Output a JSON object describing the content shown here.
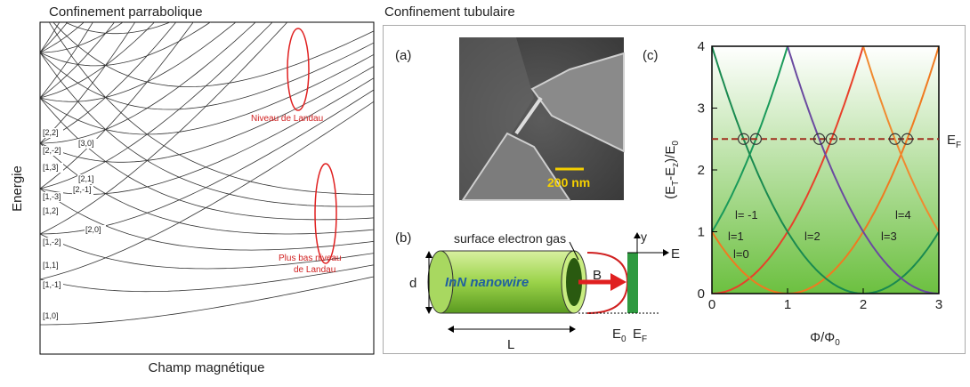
{
  "left": {
    "title": "Confinement parrabolique",
    "y_label": "Energie",
    "x_label": "Champ magnétique",
    "levels": [
      "[2,2]",
      "[3,0]",
      "[2,-2]",
      "[1,3]",
      "[2,1]",
      "[2,-1]",
      "[1,-3]",
      "[1,2]",
      "[2,0]",
      "[1,-2]",
      "[1,1]",
      "[1,-1]",
      "[1,0]"
    ],
    "annotation_1": "Niveau de Landau",
    "annotation_2": [
      "Plus bas niveau",
      "de Landau"
    ]
  },
  "right": {
    "title": "Confinement tubulaire",
    "panel_a": "(a)",
    "panel_b": "(b)",
    "panel_c": "(c)",
    "scale_bar": "200 nm",
    "b_labels": {
      "gas": "surface electron gas",
      "wire": "InN nanowire",
      "d": "d",
      "L": "L",
      "B": "B",
      "E": "E",
      "y": "y",
      "E0": [
        "E",
        "0"
      ],
      "EF": [
        "E",
        "F"
      ]
    },
    "plot": {
      "y_label": [
        "(E",
        "T",
        "-E",
        "z",
        ")/E",
        "0"
      ],
      "x_label": [
        "Φ/Φ",
        "0"
      ],
      "xticks": [
        0,
        1,
        2,
        3
      ],
      "yticks": [
        0,
        1,
        2,
        3,
        4
      ],
      "fermi_level": 2.5,
      "fermi_label": [
        "E",
        "F"
      ],
      "curve_labels": [
        "l= -1",
        "l=1",
        "l=0",
        "l=2",
        "l=3",
        "l=4"
      ]
    }
  }
}
